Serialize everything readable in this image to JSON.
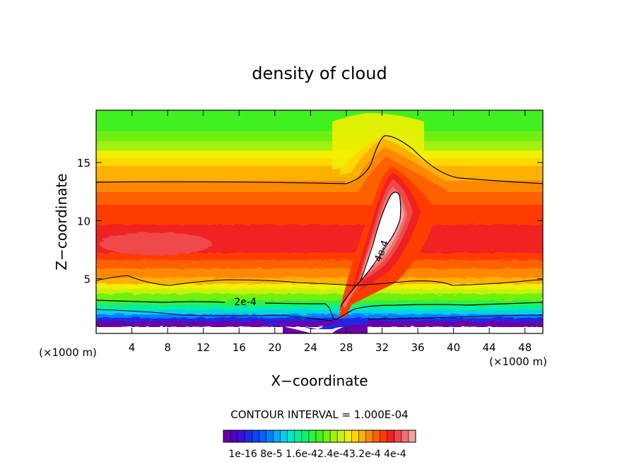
{
  "chart_data": {
    "type": "heatmap",
    "title": "density of cloud",
    "xlabel": "X−coordinate",
    "ylabel": "Z−coordinate",
    "x_unit_left": "(×1000 m)",
    "x_unit_right": "(×1000 m)",
    "xlim": [
      0,
      50
    ],
    "ylim": [
      0.3,
      19.5
    ],
    "x_ticks": [
      4,
      8,
      12,
      16,
      20,
      24,
      28,
      32,
      36,
      40,
      44,
      48
    ],
    "y_ticks": [
      5,
      10,
      15
    ],
    "contour_interval_text": "CONTOUR INTERVAL = 1.000E-04",
    "contour_labels": [
      {
        "text": "2e-4",
        "x": 16.5,
        "z": 2.9
      },
      {
        "text": "4e-4",
        "x": 32.0,
        "z": 7.5
      }
    ],
    "colorbar": {
      "levels": 27,
      "tick_labels": [
        "1e-16",
        "8e-5",
        "1.6e-4",
        "2.4e-4",
        "3.2e-4",
        "4e-4"
      ],
      "tick_text": "1e-16 8e-5 1.6e-42.4e-43.2e-4 4e-4",
      "colors": [
        "#6a00a8",
        "#5000c0",
        "#3a10d8",
        "#2028e8",
        "#1040f0",
        "#0060ff",
        "#0080ff",
        "#00a8ff",
        "#00d0f0",
        "#00e8c8",
        "#00f0a0",
        "#10f070",
        "#30f040",
        "#40f020",
        "#70f010",
        "#a0f010",
        "#c8f010",
        "#f0f000",
        "#ffd800",
        "#ffb000",
        "#ff8800",
        "#ff6000",
        "#ff3c00",
        "#f02020",
        "#f04848",
        "#f07070",
        "#f8a0a0"
      ]
    }
  }
}
